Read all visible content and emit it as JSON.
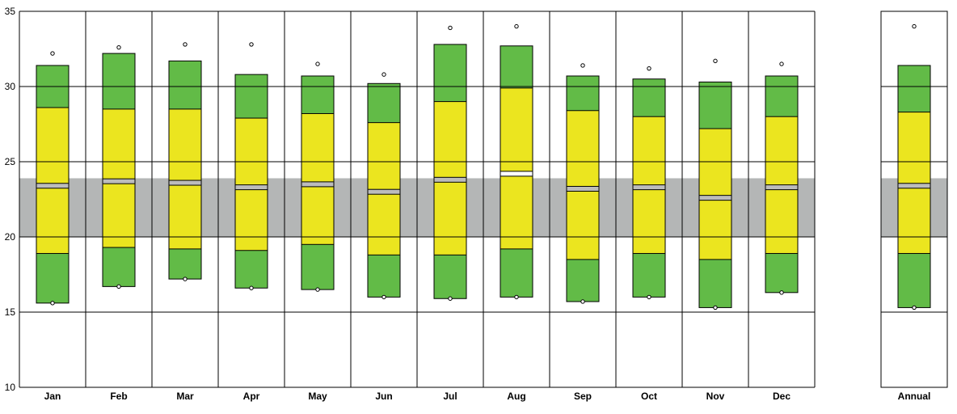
{
  "chart_data": {
    "type": "box",
    "title": "",
    "xlabel": "",
    "ylabel": "",
    "ylim": [
      10,
      35
    ],
    "yticks": [
      10,
      15,
      20,
      25,
      30,
      35
    ],
    "grid": true,
    "reference_band": {
      "low": 20,
      "high": 23.9
    },
    "colors": {
      "band": "#b4b6b6",
      "outer_box": "#62bb47",
      "inner_box": "#ebe51f",
      "median": "#bcbcbc",
      "median_highlight": "#ffffff"
    },
    "categories": [
      "Jan",
      "Feb",
      "Mar",
      "Apr",
      "May",
      "Jun",
      "Jul",
      "Aug",
      "Sep",
      "Oct",
      "Nov",
      "Dec",
      "Annual"
    ],
    "series": [
      {
        "category": "Jan",
        "min": 15.6,
        "p10": 15.6,
        "p25": 18.9,
        "median": 23.4,
        "p75": 28.6,
        "p90": 31.4,
        "max": 32.2
      },
      {
        "category": "Feb",
        "min": 16.7,
        "p10": 16.7,
        "p25": 19.3,
        "median": 23.7,
        "p75": 28.5,
        "p90": 32.2,
        "max": 32.6
      },
      {
        "category": "Mar",
        "min": 17.2,
        "p10": 17.2,
        "p25": 19.2,
        "median": 23.6,
        "p75": 28.5,
        "p90": 31.7,
        "max": 32.8
      },
      {
        "category": "Apr",
        "min": 16.6,
        "p10": 16.6,
        "p25": 19.1,
        "median": 23.3,
        "p75": 27.9,
        "p90": 30.8,
        "max": 32.8
      },
      {
        "category": "May",
        "min": 16.5,
        "p10": 16.5,
        "p25": 19.5,
        "median": 23.5,
        "p75": 28.2,
        "p90": 30.7,
        "max": 31.5
      },
      {
        "category": "Jun",
        "min": 16.0,
        "p10": 16.0,
        "p25": 18.8,
        "median": 23.0,
        "p75": 27.6,
        "p90": 30.2,
        "max": 30.8
      },
      {
        "category": "Jul",
        "min": 15.9,
        "p10": 15.9,
        "p25": 18.8,
        "median": 23.8,
        "p75": 29.0,
        "p90": 32.8,
        "max": 33.9
      },
      {
        "category": "Aug",
        "min": 16.0,
        "p10": 16.0,
        "p25": 19.2,
        "median": 24.2,
        "p75": 29.9,
        "p90": 32.7,
        "max": 34.0,
        "median_highlight": true
      },
      {
        "category": "Sep",
        "min": 15.7,
        "p10": 15.7,
        "p25": 18.5,
        "median": 23.2,
        "p75": 28.4,
        "p90": 30.7,
        "max": 31.4
      },
      {
        "category": "Oct",
        "min": 16.0,
        "p10": 16.0,
        "p25": 18.9,
        "median": 23.3,
        "p75": 28.0,
        "p90": 30.5,
        "max": 31.2
      },
      {
        "category": "Nov",
        "min": 15.3,
        "p10": 15.3,
        "p25": 18.5,
        "median": 22.6,
        "p75": 27.2,
        "p90": 30.3,
        "max": 31.7
      },
      {
        "category": "Dec",
        "min": 16.3,
        "p10": 16.3,
        "p25": 18.9,
        "median": 23.3,
        "p75": 28.0,
        "p90": 30.7,
        "max": 31.5
      },
      {
        "category": "Annual",
        "min": 15.3,
        "p10": 15.3,
        "p25": 18.9,
        "median": 23.4,
        "p75": 28.3,
        "p90": 31.4,
        "max": 34.0
      }
    ]
  }
}
